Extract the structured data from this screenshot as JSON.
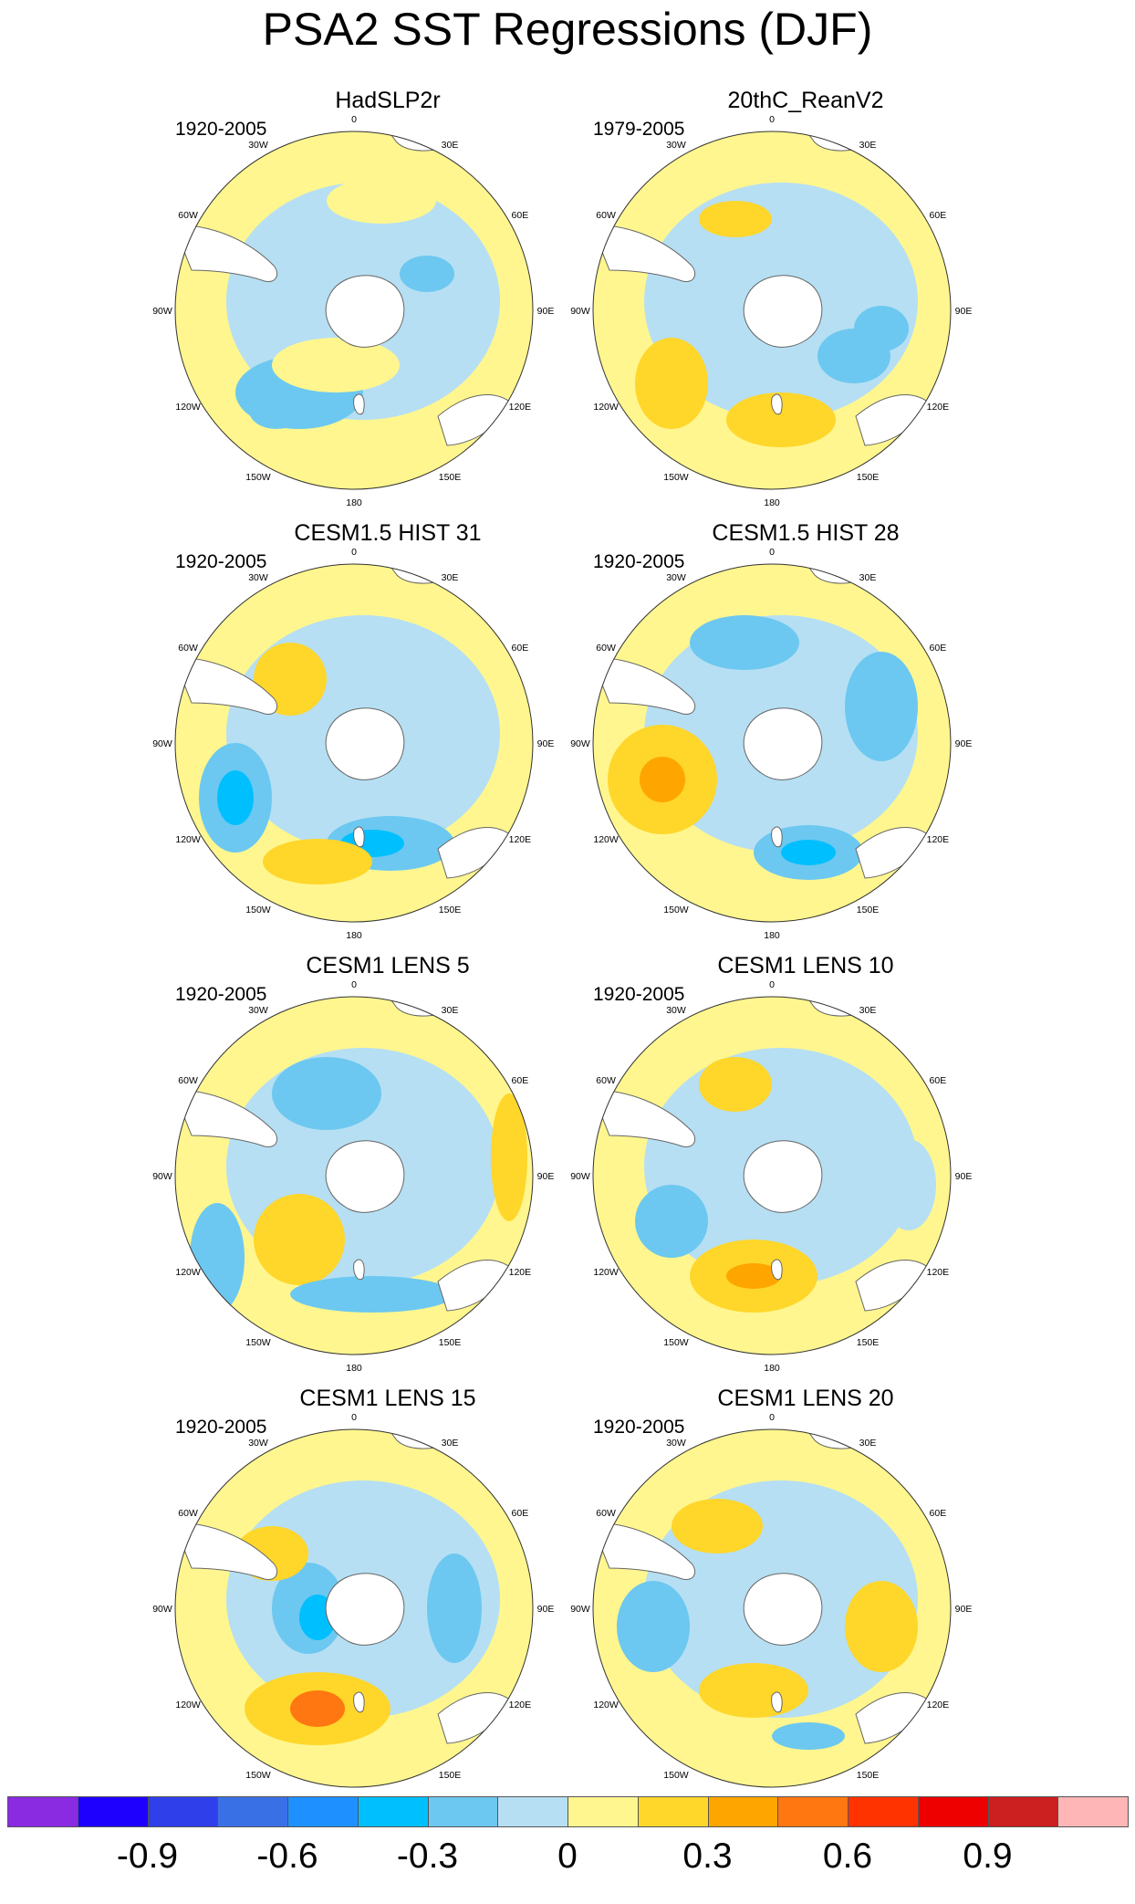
{
  "figure": {
    "title": "PSA2 SST Regressions (DJF)"
  },
  "chart_data": {
    "type": "heatmap",
    "projection": "south-polar-stereographic",
    "variable": "SST regression",
    "season": "DJF",
    "longitude_labels": [
      "0",
      "30E",
      "60E",
      "90E",
      "120E",
      "150E",
      "180",
      "150W",
      "120W",
      "90W",
      "60W",
      "30W"
    ],
    "colorbar": {
      "levels": [
        -1.05,
        -0.9,
        -0.75,
        -0.6,
        -0.45,
        -0.3,
        -0.15,
        0,
        0.15,
        0.3,
        0.45,
        0.6,
        0.75,
        0.9,
        1.05
      ],
      "tick_labels": [
        "-0.9",
        "-0.6",
        "-0.3",
        "0",
        "0.3",
        "0.6",
        "0.9"
      ],
      "tick_values": [
        -0.9,
        -0.6,
        -0.3,
        0,
        0.3,
        0.6,
        0.9
      ],
      "colors": [
        "#8A2BE2",
        "#1E00FF",
        "#2F3FEA",
        "#3A70E6",
        "#1E90FF",
        "#00BFFF",
        "#6CC8F0",
        "#B6DFF3",
        "#FFF68F",
        "#FFD62A",
        "#FFA500",
        "#FF7711",
        "#FF3300",
        "#EE0000",
        "#CC1F1F",
        "#FFB6B6"
      ]
    },
    "panels": [
      {
        "title": "HadSLP2r",
        "period": "1920-2005"
      },
      {
        "title": "20thC_ReanV2",
        "period": "1979-2005"
      },
      {
        "title": "CESM1.5 HIST 31",
        "period": "1920-2005"
      },
      {
        "title": "CESM1.5 HIST 28",
        "period": "1920-2005"
      },
      {
        "title": "CESM1 LENS 5",
        "period": "1920-2005"
      },
      {
        "title": "CESM1 LENS 10",
        "period": "1920-2005"
      },
      {
        "title": "CESM1 LENS 15",
        "period": "1920-2005"
      },
      {
        "title": "CESM1 LENS 20",
        "period": "1920-2005"
      }
    ]
  }
}
